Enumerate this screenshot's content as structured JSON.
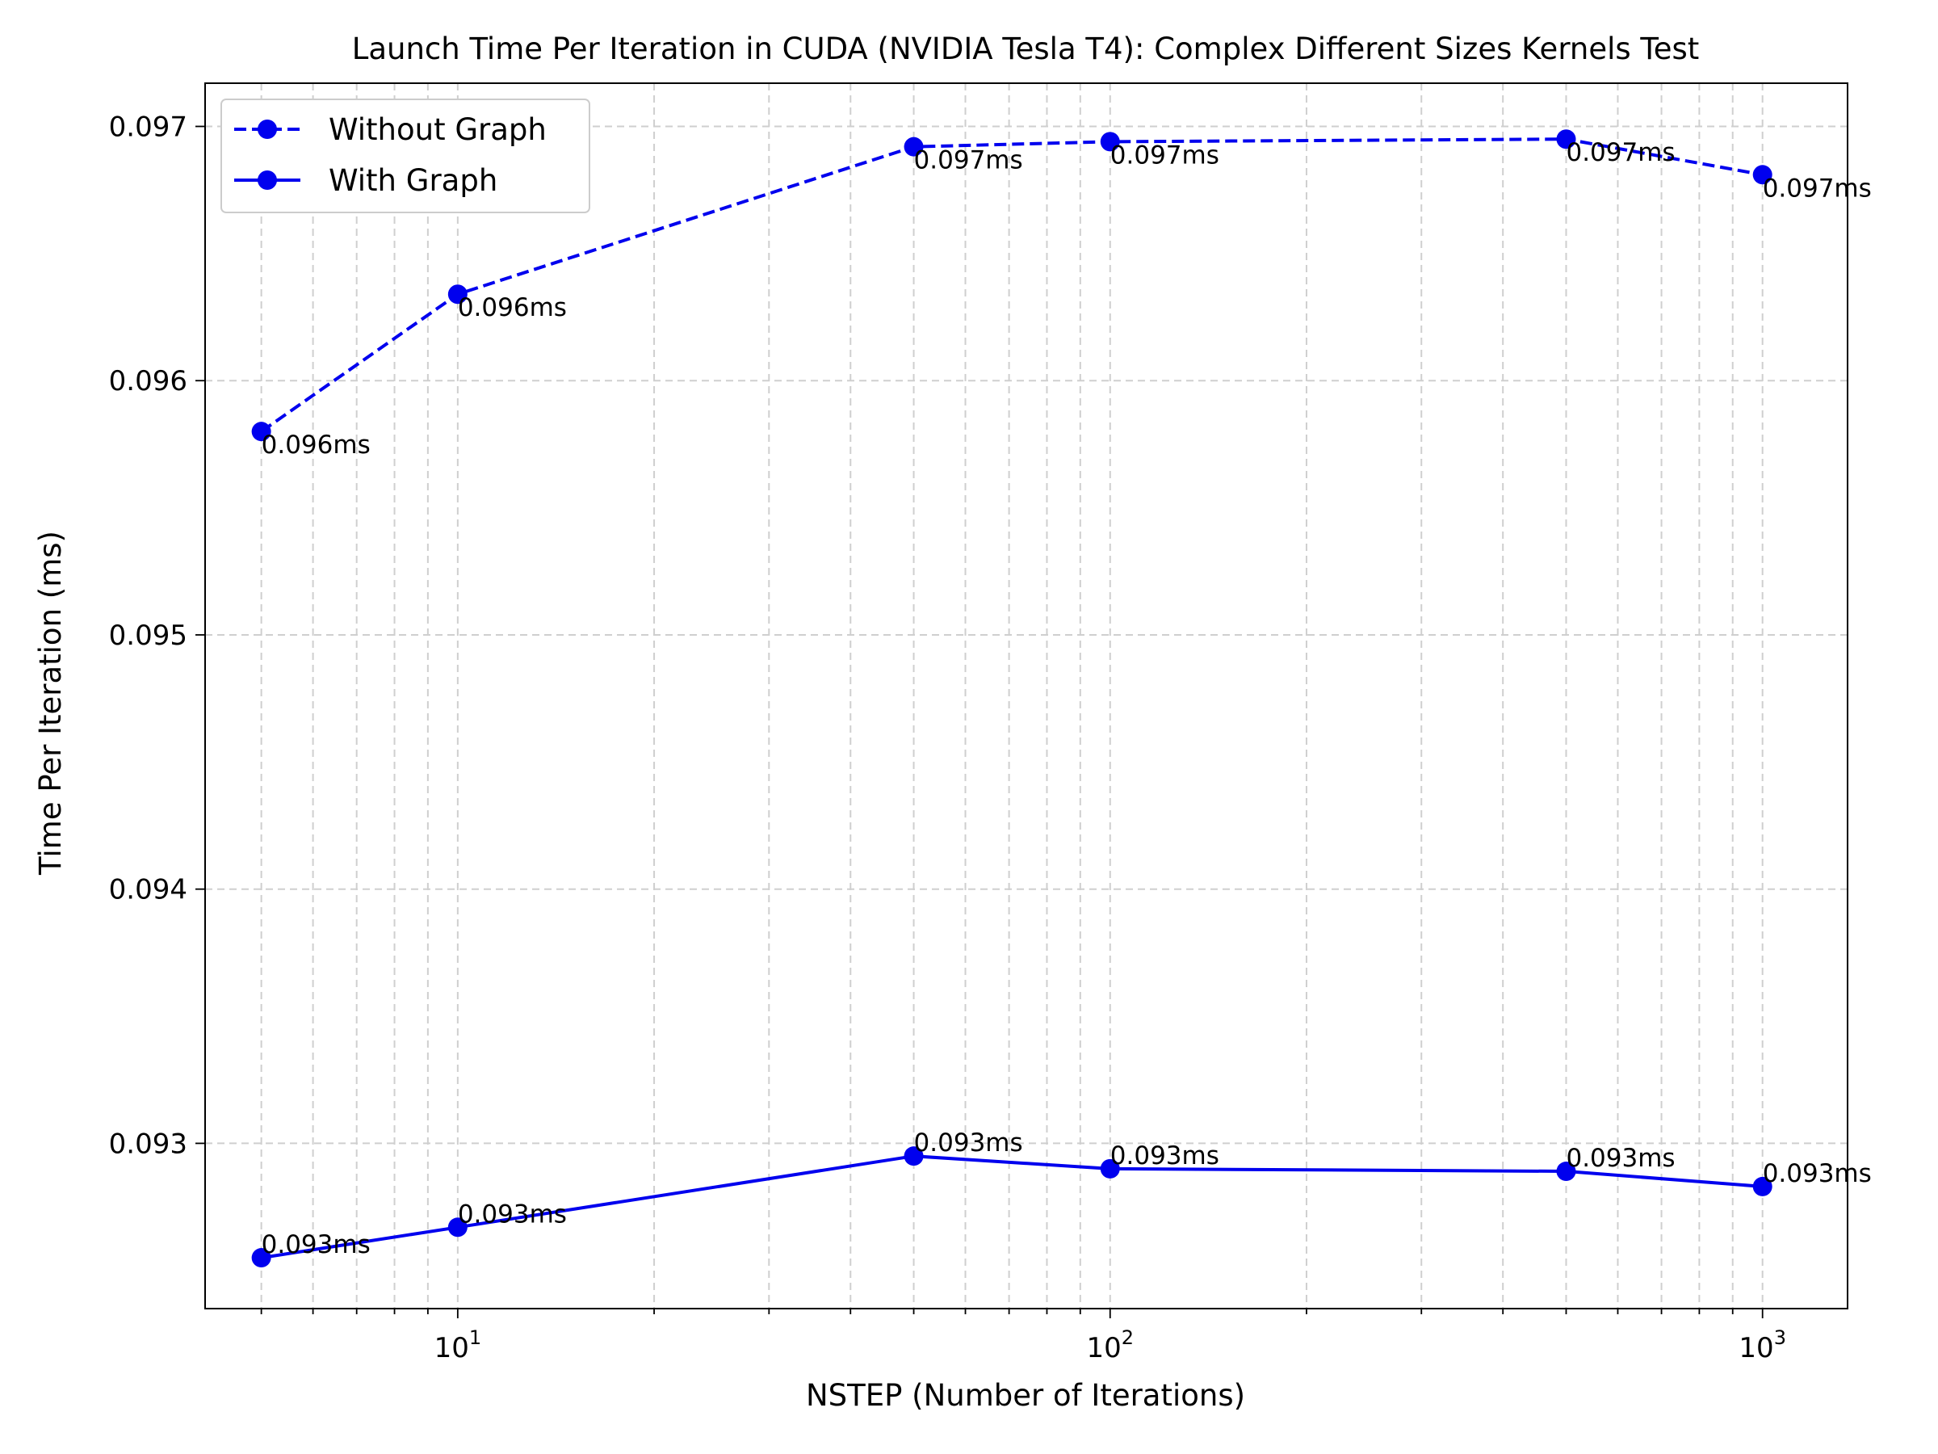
{
  "chart_data": {
    "type": "line",
    "title": "Launch Time Per Iteration in CUDA (NVIDIA Tesla T4): Complex Different Sizes Kernels Test",
    "xlabel": "NSTEP (Number of Iterations)",
    "ylabel": "Time Per Iteration (ms)",
    "x_scale": "log",
    "xlim": [
      4.1,
      1350
    ],
    "ylim": [
      0.09235,
      0.09717
    ],
    "x_major_ticks": [
      10,
      100,
      1000
    ],
    "x_tick_labels": [
      {
        "base": "10",
        "exp": "1"
      },
      {
        "base": "10",
        "exp": "2"
      },
      {
        "base": "10",
        "exp": "3"
      }
    ],
    "y_ticks": [
      0.093,
      0.094,
      0.095,
      0.096,
      0.097
    ],
    "y_tick_labels": [
      "0.093",
      "0.094",
      "0.095",
      "0.096",
      "0.097"
    ],
    "grid": true,
    "legend_position": "top-left",
    "x": [
      5,
      10,
      50,
      100,
      500,
      1000
    ],
    "series": [
      {
        "name": "Without Graph",
        "color": "#0000ee",
        "linestyle": "dashed",
        "marker": "circle",
        "values": [
          0.0958,
          0.09634,
          0.09692,
          0.09694,
          0.09695,
          0.09681
        ],
        "labels": [
          "0.096ms",
          "0.096ms",
          "0.097ms",
          "0.097ms",
          "0.097ms",
          "0.097ms"
        ],
        "label_position": "below-right"
      },
      {
        "name": "With Graph",
        "color": "#0000ee",
        "linestyle": "solid",
        "marker": "circle",
        "values": [
          0.09255,
          0.09267,
          0.09295,
          0.0929,
          0.09289,
          0.09283
        ],
        "labels": [
          "0.093ms",
          "0.093ms",
          "0.093ms",
          "0.093ms",
          "0.093ms",
          "0.093ms"
        ],
        "label_position": "above-right"
      }
    ]
  }
}
